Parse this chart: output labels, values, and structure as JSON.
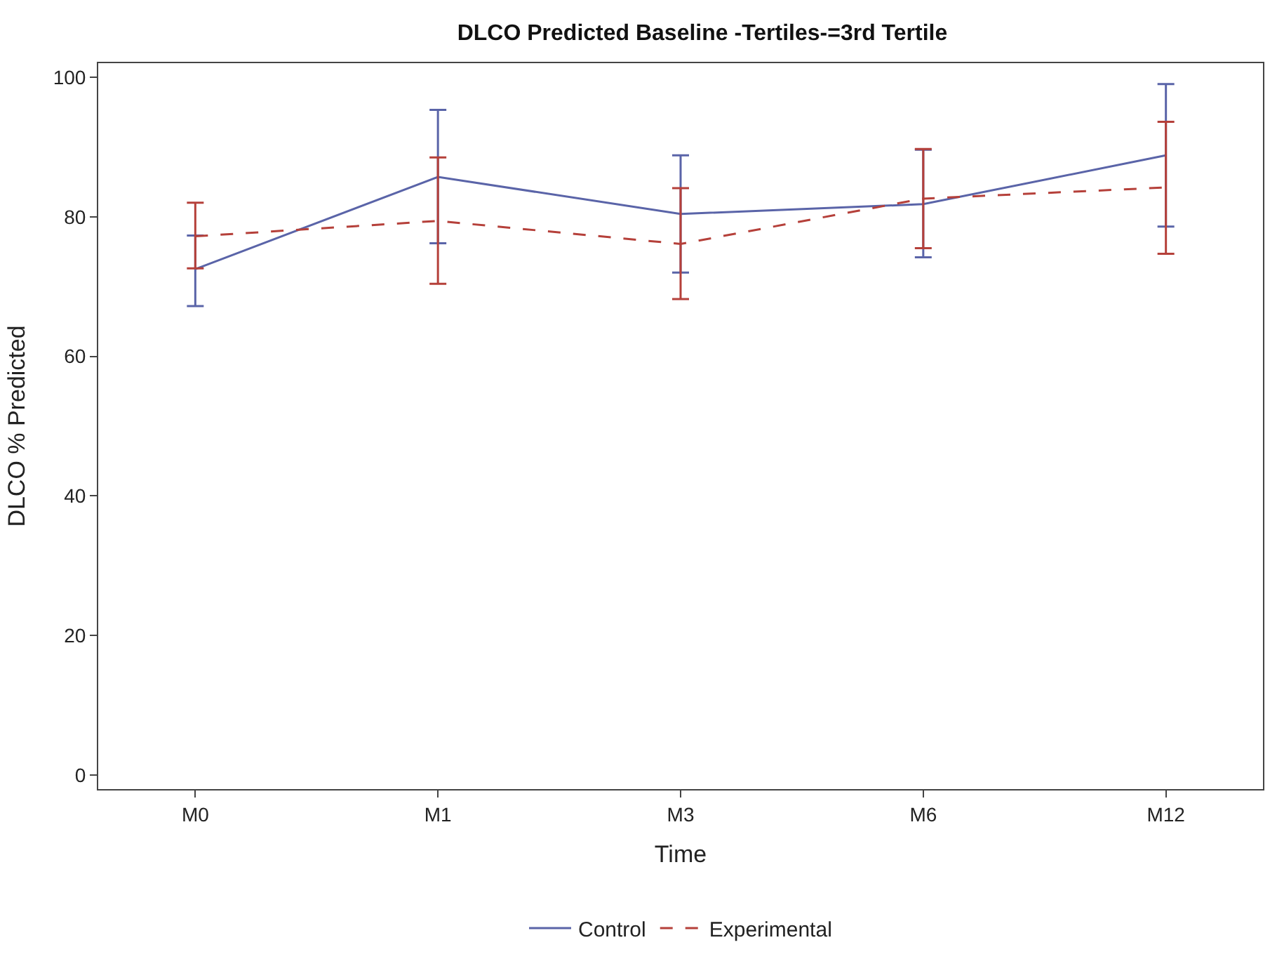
{
  "chart_data": {
    "type": "line",
    "title": "DLCO Predicted Baseline -Tertiles-=3rd Tertile",
    "xlabel": "Time",
    "ylabel": "DLCO % Predicted",
    "categories": [
      "M0",
      "M1",
      "M3",
      "M6",
      "M12"
    ],
    "ylim": [
      -2,
      102
    ],
    "yticks": [
      0,
      20,
      40,
      60,
      80,
      100
    ],
    "legend": "bottom",
    "marker": "none",
    "series": [
      {
        "name": "Control",
        "color": "#5a64a8",
        "line_style": "solid",
        "values": [
          72.5,
          85.7,
          80.4,
          81.8,
          88.8
        ],
        "errors": [
          [
            67.2,
            77.3
          ],
          [
            76.2,
            95.3
          ],
          [
            72.0,
            88.8
          ],
          [
            74.2,
            89.6
          ],
          [
            78.6,
            99.0
          ]
        ]
      },
      {
        "name": "Experimental",
        "color": "#b5403a",
        "line_style": "dashed",
        "values": [
          77.2,
          79.4,
          76.1,
          82.6,
          84.2
        ],
        "errors": [
          [
            72.6,
            82.0
          ],
          [
            70.4,
            88.5
          ],
          [
            68.2,
            84.1
          ],
          [
            75.5,
            89.7
          ],
          [
            74.7,
            93.6
          ]
        ]
      }
    ]
  }
}
